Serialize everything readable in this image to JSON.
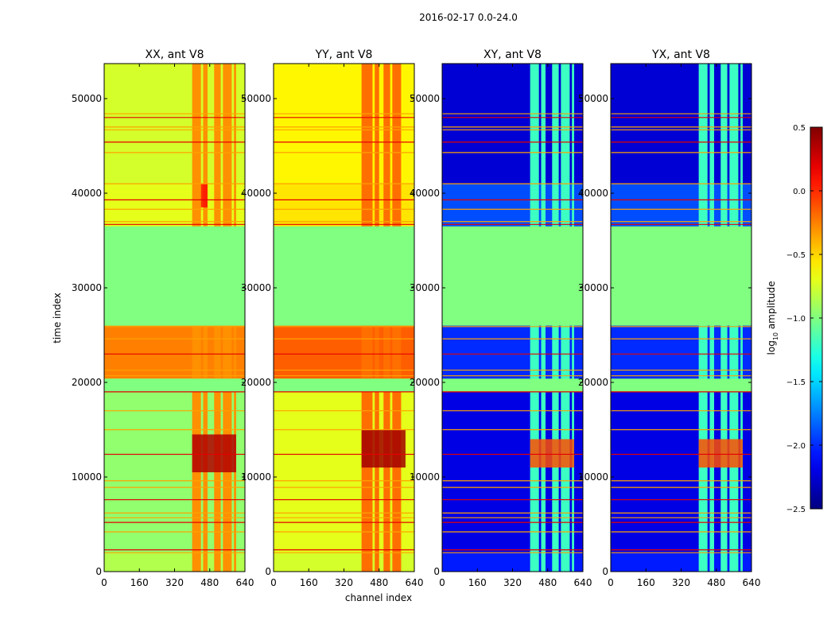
{
  "chart_data": {
    "type": "heatmap",
    "suptitle": "2016-02-17 0.0-24.0",
    "xlabel": "channel index",
    "ylabel": "time index",
    "xlim": [
      0,
      640
    ],
    "ylim": [
      0,
      53700
    ],
    "x_ticks": [
      0,
      160,
      320,
      480,
      640
    ],
    "y_ticks": [
      0,
      10000,
      20000,
      30000,
      40000,
      50000
    ],
    "colorbar": {
      "label_main": "log",
      "label_sub": "10",
      "label_rest": " amplitude",
      "range": [
        -2.5,
        0.5
      ],
      "ticks": [
        {
          "value": 0.5,
          "label": "0.5"
        },
        {
          "value": 0.0,
          "label": "0.0"
        },
        {
          "value": -0.5,
          "label": "−0.5"
        },
        {
          "value": -1.0,
          "label": "−1.0"
        },
        {
          "value": -1.5,
          "label": "−1.5"
        },
        {
          "value": -2.0,
          "label": "−2.0"
        },
        {
          "value": -2.5,
          "label": "−2.5"
        }
      ],
      "colormap": "jet"
    },
    "flagged_fill_value": -1.0,
    "flagged_time_ranges": [
      [
        20400,
        19000
      ],
      [
        36500,
        26000
      ]
    ],
    "horizontal_flag_lines_time": [
      2300,
      2000,
      4200,
      5200,
      5700,
      6200,
      7600,
      8900,
      9600,
      12400,
      15000,
      17000,
      19000,
      20700,
      21300,
      23000,
      24600,
      25900,
      36700,
      37000,
      38300,
      39300,
      41000,
      44300,
      45400,
      46700,
      47000,
      48000,
      48400
    ],
    "panels": [
      {
        "title": "XX, ant V8",
        "polarization": "XX",
        "antenna": "V8",
        "background_value": -0.75,
        "rfi_channel_ranges": [
          [
            400,
            440
          ],
          [
            450,
            470
          ],
          [
            500,
            530
          ],
          [
            540,
            580
          ],
          [
            590,
            600
          ]
        ],
        "rfi_value": -0.3,
        "time_blocks": [
          {
            "t0": 0,
            "t1": 2000,
            "value": -0.85
          },
          {
            "t0": 2000,
            "t1": 19000,
            "value": -0.95
          },
          {
            "t0": 20400,
            "t1": 26000,
            "value": -0.25
          },
          {
            "t0": 36500,
            "t1": 41000,
            "value": -0.7
          },
          {
            "t0": 41000,
            "t1": 53700,
            "value": -0.75
          }
        ],
        "hot_regions": [
          {
            "c0": 400,
            "c1": 600,
            "t0": 10500,
            "t1": 14500,
            "value": 0.35
          },
          {
            "c0": 440,
            "c1": 470,
            "t0": 38500,
            "t1": 41000,
            "value": 0.1
          }
        ]
      },
      {
        "title": "YY, ant V8",
        "polarization": "YY",
        "antenna": "V8",
        "background_value": -0.6,
        "rfi_channel_ranges": [
          [
            400,
            450
          ],
          [
            460,
            480
          ],
          [
            500,
            530
          ],
          [
            540,
            580
          ]
        ],
        "rfi_value": -0.2,
        "time_blocks": [
          {
            "t0": 0,
            "t1": 2000,
            "value": -0.75
          },
          {
            "t0": 2000,
            "t1": 19000,
            "value": -0.7
          },
          {
            "t0": 20400,
            "t1": 26000,
            "value": -0.15
          },
          {
            "t0": 36500,
            "t1": 41000,
            "value": -0.55
          },
          {
            "t0": 41000,
            "t1": 53700,
            "value": -0.6
          }
        ],
        "hot_regions": [
          {
            "c0": 400,
            "c1": 600,
            "t0": 11000,
            "t1": 15000,
            "value": 0.4
          }
        ]
      },
      {
        "title": "XY, ant V8",
        "polarization": "XY",
        "antenna": "V8",
        "background_value": -2.25,
        "rfi_channel_ranges": [
          [
            400,
            440
          ],
          [
            450,
            470
          ],
          [
            500,
            530
          ],
          [
            540,
            580
          ],
          [
            590,
            600
          ]
        ],
        "rfi_value": -1.2,
        "time_blocks": [
          {
            "t0": 0,
            "t1": 2000,
            "value": -2.05
          },
          {
            "t0": 2000,
            "t1": 19000,
            "value": -2.2
          },
          {
            "t0": 20400,
            "t1": 26000,
            "value": -2.0
          },
          {
            "t0": 36500,
            "t1": 41000,
            "value": -1.9
          },
          {
            "t0": 41000,
            "t1": 53700,
            "value": -2.25
          }
        ],
        "hot_regions": [
          {
            "c0": 400,
            "c1": 600,
            "t0": 11000,
            "t1": 14000,
            "value": -0.1
          }
        ]
      },
      {
        "title": "YX, ant V8",
        "polarization": "YX",
        "antenna": "V8",
        "background_value": -2.25,
        "rfi_channel_ranges": [
          [
            400,
            440
          ],
          [
            450,
            470
          ],
          [
            500,
            530
          ],
          [
            540,
            580
          ],
          [
            590,
            600
          ]
        ],
        "rfi_value": -1.2,
        "time_blocks": [
          {
            "t0": 0,
            "t1": 2000,
            "value": -2.05
          },
          {
            "t0": 2000,
            "t1": 19000,
            "value": -2.2
          },
          {
            "t0": 20400,
            "t1": 26000,
            "value": -2.0
          },
          {
            "t0": 36500,
            "t1": 41000,
            "value": -1.9
          },
          {
            "t0": 41000,
            "t1": 53700,
            "value": -2.25
          }
        ],
        "hot_regions": [
          {
            "c0": 400,
            "c1": 600,
            "t0": 11000,
            "t1": 14000,
            "value": -0.1
          }
        ]
      }
    ]
  }
}
